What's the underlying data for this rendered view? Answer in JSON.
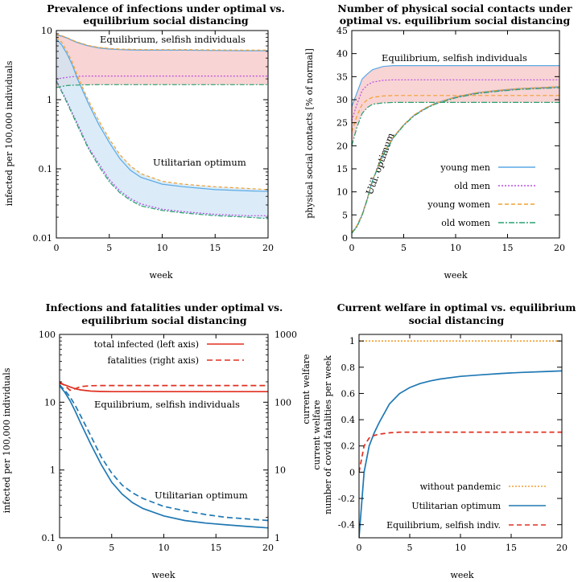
{
  "chart_data": [
    {
      "id": "p1",
      "type": "area",
      "title_lines": [
        "Prevalence of infections under optimal vs.",
        "equilibrium social distancing"
      ],
      "xlabel": "week",
      "ylabel": "infected per 100,000 individuals",
      "xlim": [
        0,
        20
      ],
      "ylim": [
        0.01,
        10
      ],
      "yscale": "log",
      "xticks": [
        "0",
        "5",
        "10",
        "15",
        "20"
      ],
      "yticks": [
        {
          "value": 0.01,
          "label": "0.01"
        },
        {
          "value": 0.1,
          "label": "0.1"
        },
        {
          "value": 1,
          "label": "1"
        },
        {
          "value": 10,
          "label": "10"
        }
      ],
      "annotations": [
        {
          "text": "Equilibrium, selfish individuals",
          "x": 8.5,
          "y": 6.8
        },
        {
          "text": "Utilitarian optimum",
          "x": 9.5,
          "y": 0.13
        }
      ],
      "x": [
        0,
        0.5,
        1,
        1.5,
        2,
        3,
        4,
        5,
        6,
        7,
        8,
        10,
        12,
        15,
        18,
        20
      ],
      "bands": [
        {
          "color": "#f5c6c6",
          "upper": [
            9.0,
            8.6,
            8.0,
            7.4,
            6.9,
            6.2,
            5.8,
            5.6,
            5.45,
            5.4,
            5.35,
            5.3,
            5.3,
            5.25,
            5.2,
            5.2
          ],
          "lower": [
            1.5,
            1.55,
            1.6,
            1.62,
            1.63,
            1.64,
            1.65,
            1.65,
            1.65,
            1.65,
            1.65,
            1.65,
            1.65,
            1.65,
            1.65,
            1.65
          ]
        },
        {
          "color": "#cfe5f5",
          "upper": [
            8.0,
            6.8,
            5.0,
            3.5,
            2.2,
            1.0,
            0.5,
            0.27,
            0.16,
            0.11,
            0.085,
            0.066,
            0.06,
            0.055,
            0.052,
            0.05
          ],
          "lower": [
            1.9,
            1.3,
            0.9,
            0.62,
            0.42,
            0.2,
            0.11,
            0.065,
            0.045,
            0.035,
            0.029,
            0.025,
            0.023,
            0.021,
            0.02,
            0.019
          ]
        }
      ],
      "series": [
        {
          "color": "#5aa9e6",
          "dash": "",
          "values": [
            8.6,
            8.3,
            7.8,
            7.2,
            6.7,
            6.0,
            5.6,
            5.4,
            5.3,
            5.25,
            5.2,
            5.2,
            5.2,
            5.15,
            5.1,
            5.1
          ]
        },
        {
          "color": "#b84fe0",
          "dash": "2,2",
          "values": [
            2.0,
            2.05,
            2.1,
            2.15,
            2.18,
            2.2,
            2.2,
            2.2,
            2.2,
            2.2,
            2.2,
            2.2,
            2.2,
            2.2,
            2.2,
            2.2
          ]
        },
        {
          "color": "#f0a030",
          "dash": "4,3",
          "values": [
            8.8,
            8.4,
            7.9,
            7.3,
            6.8,
            6.1,
            5.7,
            5.5,
            5.4,
            5.35,
            5.3,
            5.3,
            5.3,
            5.25,
            5.2,
            5.2
          ]
        },
        {
          "color": "#2aa070",
          "dash": "6,2,2,2",
          "values": [
            1.5,
            1.55,
            1.6,
            1.62,
            1.63,
            1.64,
            1.65,
            1.65,
            1.65,
            1.65,
            1.65,
            1.65,
            1.65,
            1.65,
            1.65,
            1.65
          ]
        },
        {
          "color": "#5aa9e6",
          "dash": "",
          "values": [
            7.5,
            6.2,
            4.6,
            3.2,
            2.0,
            0.9,
            0.44,
            0.24,
            0.14,
            0.095,
            0.075,
            0.06,
            0.055,
            0.05,
            0.048,
            0.047
          ]
        },
        {
          "color": "#b84fe0",
          "dash": "2,2",
          "values": [
            1.9,
            1.35,
            0.95,
            0.65,
            0.45,
            0.21,
            0.12,
            0.07,
            0.048,
            0.037,
            0.031,
            0.026,
            0.024,
            0.022,
            0.021,
            0.021
          ]
        },
        {
          "color": "#f0a030",
          "dash": "4,3",
          "values": [
            8.0,
            6.8,
            5.0,
            3.5,
            2.2,
            1.0,
            0.5,
            0.27,
            0.16,
            0.11,
            0.085,
            0.066,
            0.06,
            0.055,
            0.052,
            0.05
          ]
        },
        {
          "color": "#2aa070",
          "dash": "6,2,2,2",
          "values": [
            1.85,
            1.3,
            0.9,
            0.62,
            0.42,
            0.2,
            0.11,
            0.065,
            0.045,
            0.035,
            0.029,
            0.025,
            0.023,
            0.021,
            0.02,
            0.019
          ]
        }
      ]
    },
    {
      "id": "p2",
      "type": "line",
      "title_lines": [
        "Number of physical social contacts under",
        "optimal vs. equilibrium social distancing"
      ],
      "xlabel": "week",
      "ylabel": "physical social contacts [% of normal]",
      "xlim": [
        0,
        20
      ],
      "ylim": [
        0,
        45
      ],
      "xticks": [
        "0",
        "5",
        "10",
        "15",
        "20"
      ],
      "yticks": [
        {
          "value": 0,
          "label": "0"
        },
        {
          "value": 5,
          "label": "5"
        },
        {
          "value": 10,
          "label": "10"
        },
        {
          "value": 15,
          "label": "15"
        },
        {
          "value": 20,
          "label": "20"
        },
        {
          "value": 25,
          "label": "25"
        },
        {
          "value": 30,
          "label": "30"
        },
        {
          "value": 35,
          "label": "35"
        },
        {
          "value": 40,
          "label": "40"
        },
        {
          "value": 45,
          "label": "45"
        }
      ],
      "annotations": [
        {
          "text": "Equilibrium, selfish individuals",
          "x": 2.8,
          "y": 37.8
        },
        {
          "text": "Util. optimum",
          "x": 2.1,
          "y": 11.5,
          "rotate": -70
        }
      ],
      "legend": [
        {
          "label": "young men",
          "color": "#5aa9e6",
          "dash": ""
        },
        {
          "label": "old men",
          "color": "#b84fe0",
          "dash": "2,2"
        },
        {
          "label": "young women",
          "color": "#f0a030",
          "dash": "5,3"
        },
        {
          "label": "old women",
          "color": "#2aa070",
          "dash": "7,2,2,2"
        }
      ],
      "x": [
        0,
        0.5,
        1,
        1.5,
        2,
        3,
        4,
        5,
        6,
        7,
        8,
        10,
        12,
        14,
        16,
        18,
        20
      ],
      "band": {
        "color": "#f5c6c6",
        "upper": [
          28.5,
          31.5,
          34.5,
          35.6,
          36.5,
          37.2,
          37.4,
          37.4,
          37.4,
          37.4,
          37.4,
          37.4,
          37.4,
          37.4,
          37.4,
          37.4,
          37.4
        ],
        "lower": [
          20.0,
          24.0,
          27.0,
          28.3,
          29.0,
          29.3,
          29.4,
          29.4,
          29.4,
          29.4,
          29.4,
          29.4,
          29.4,
          29.4,
          29.4,
          29.4,
          29.4
        ]
      },
      "series": [
        {
          "name": "young men",
          "color": "#5aa9e6",
          "dash": "",
          "values": [
            28.5,
            31.5,
            34.5,
            35.6,
            36.5,
            37.2,
            37.4,
            37.4,
            37.4,
            37.4,
            37.4,
            37.4,
            37.4,
            37.4,
            37.4,
            37.4,
            37.4
          ]
        },
        {
          "name": "old men",
          "color": "#b84fe0",
          "dash": "2,2",
          "values": [
            25.5,
            29.0,
            32.0,
            33.2,
            33.8,
            34.2,
            34.3,
            34.3,
            34.3,
            34.3,
            34.3,
            34.3,
            34.3,
            34.3,
            34.3,
            34.3,
            34.3
          ]
        },
        {
          "name": "young women",
          "color": "#f0a030",
          "dash": "5,3",
          "values": [
            23.0,
            26.5,
            29.0,
            30.0,
            30.5,
            30.8,
            30.9,
            30.9,
            30.9,
            30.9,
            30.9,
            30.9,
            30.9,
            30.9,
            30.9,
            30.9,
            30.9
          ]
        },
        {
          "name": "old women",
          "color": "#2aa070",
          "dash": "7,2,2,2",
          "values": [
            20.0,
            24.0,
            27.0,
            28.3,
            29.0,
            29.3,
            29.4,
            29.4,
            29.4,
            29.4,
            29.4,
            29.4,
            29.4,
            29.4,
            29.4,
            29.4,
            29.4
          ]
        },
        {
          "name": "young men",
          "color": "#5aa9e6",
          "dash": "",
          "values": [
            1.0,
            2.5,
            5.0,
            8.5,
            12.5,
            18.0,
            21.8,
            24.5,
            26.6,
            28.0,
            29.2,
            30.6,
            31.5,
            32.0,
            32.4,
            32.6,
            32.8
          ]
        },
        {
          "name": "old men",
          "color": "#b84fe0",
          "dash": "2,2",
          "values": [
            1.1,
            2.6,
            5.1,
            8.6,
            12.5,
            18.0,
            21.8,
            24.5,
            26.6,
            28.0,
            29.1,
            30.5,
            31.4,
            31.9,
            32.3,
            32.5,
            32.7
          ]
        },
        {
          "name": "young women",
          "color": "#f0a030",
          "dash": "5,3",
          "values": [
            1.2,
            2.7,
            5.2,
            8.7,
            12.6,
            18.1,
            21.9,
            24.6,
            26.7,
            28.1,
            29.2,
            30.6,
            31.5,
            32.0,
            32.4,
            32.6,
            32.8
          ]
        },
        {
          "name": "old women",
          "color": "#2aa070",
          "dash": "7,2,2,2",
          "values": [
            1.0,
            2.4,
            4.9,
            8.4,
            12.4,
            17.9,
            21.7,
            24.4,
            26.5,
            27.9,
            29.0,
            30.4,
            31.3,
            31.8,
            32.2,
            32.4,
            32.6
          ]
        }
      ]
    },
    {
      "id": "p3",
      "type": "line",
      "title_lines": [
        "Infections and fatalities under optimal vs.",
        "equilibrium social distancing"
      ],
      "xlabel": "week",
      "ylabel": "infected per 100,000 individuals",
      "ylabel_right": "current welfare",
      "xlim": [
        0,
        20
      ],
      "ylim": [
        0.1,
        100
      ],
      "yscale": "log",
      "ylim_right": [
        1,
        1000
      ],
      "xticks": [
        "0",
        "5",
        "10",
        "15",
        "20"
      ],
      "yticks": [
        {
          "value": 0.1,
          "label": "0.1"
        },
        {
          "value": 1,
          "label": "1"
        },
        {
          "value": 10,
          "label": "10"
        },
        {
          "value": 100,
          "label": "100"
        }
      ],
      "yticks_right": [
        {
          "value": 1,
          "label": "1"
        },
        {
          "value": 10,
          "label": "10"
        },
        {
          "value": 100,
          "label": "100"
        },
        {
          "value": 1000,
          "label": "1000"
        }
      ],
      "annotations": [
        {
          "text": "Equilibrium, selfish individuals",
          "x": 3.3,
          "y": 10.2
        },
        {
          "text": "Utilitarian optimum",
          "x": 9.0,
          "y": 0.42
        }
      ],
      "legend": [
        {
          "label": "total infected (left axis)",
          "color": "#e03020",
          "dash": ""
        },
        {
          "label": "fatalities (right axis)",
          "color": "#e03020",
          "dash": "7,4"
        }
      ],
      "x": [
        0,
        0.5,
        1,
        1.5,
        2,
        3,
        4,
        5,
        6,
        7,
        8,
        10,
        12,
        14,
        16,
        18,
        20
      ],
      "series": [
        {
          "name": "total infected (left axis)",
          "axis": "left",
          "color": "#e03020",
          "dash": "",
          "values": [
            19.0,
            18.0,
            16.8,
            15.8,
            15.2,
            14.6,
            14.4,
            14.3,
            14.3,
            14.3,
            14.3,
            14.3,
            14.3,
            14.3,
            14.3,
            14.3,
            14.3
          ]
        },
        {
          "name": "fatalities (right axis)",
          "axis": "right",
          "color": "#e03020",
          "dash": "7,4",
          "values": [
            200,
            175,
            150,
            158,
            170,
            175,
            176,
            176,
            176,
            176,
            176,
            176,
            176,
            176,
            176,
            176,
            176
          ]
        },
        {
          "name": "total infected (left axis)",
          "axis": "left",
          "color": "#1f78b4",
          "dash": "",
          "values": [
            17.5,
            14.0,
            10.5,
            7.4,
            5.0,
            2.4,
            1.2,
            0.66,
            0.44,
            0.33,
            0.27,
            0.21,
            0.18,
            0.165,
            0.155,
            0.147,
            0.14
          ]
        },
        {
          "name": "fatalities (right axis)",
          "axis": "right",
          "color": "#1f78b4",
          "dash": "7,4",
          "values": [
            180,
            150,
            120,
            90,
            64,
            32,
            15.5,
            9.0,
            6.0,
            4.6,
            3.8,
            2.9,
            2.5,
            2.2,
            2.0,
            1.9,
            1.8
          ]
        }
      ]
    },
    {
      "id": "p4",
      "type": "line",
      "title_lines": [
        "Current welfare in optimal vs. equilibrium",
        "social distancing"
      ],
      "xlabel": "week",
      "ylabel_lines": [
        "current welfare",
        "number of covid fatalities per week"
      ],
      "xlim": [
        0,
        20
      ],
      "ylim": [
        -0.5,
        1.05
      ],
      "xticks": [
        "0",
        "5",
        "10",
        "15",
        "20"
      ],
      "yticks": [
        {
          "value": -0.4,
          "label": "-0.4"
        },
        {
          "value": -0.2,
          "label": "-0.2"
        },
        {
          "value": 0,
          "label": "0"
        },
        {
          "value": 0.2,
          "label": "0.2"
        },
        {
          "value": 0.4,
          "label": "0.4"
        },
        {
          "value": 0.6,
          "label": "0.6"
        },
        {
          "value": 0.8,
          "label": "0.8"
        },
        {
          "value": 1,
          "label": "1"
        }
      ],
      "legend": [
        {
          "label": "without pandemic",
          "color": "#f0a030",
          "dash": "2,2"
        },
        {
          "label": "Utilitarian optimum",
          "color": "#1f78b4",
          "dash": ""
        },
        {
          "label": "Equilibrium, selfish indiv.",
          "color": "#e03020",
          "dash": "6,4"
        }
      ],
      "x": [
        0,
        0.5,
        1,
        1.5,
        2,
        3,
        4,
        5,
        6,
        7,
        8,
        10,
        12,
        14,
        16,
        18,
        20
      ],
      "series": [
        {
          "name": "without pandemic",
          "color": "#f0a030",
          "dash": "2,2",
          "values": [
            1,
            1,
            1,
            1,
            1,
            1,
            1,
            1,
            1,
            1,
            1,
            1,
            1,
            1,
            1,
            1,
            1
          ]
        },
        {
          "name": "Utilitarian optimum",
          "color": "#1f78b4",
          "dash": "",
          "values": [
            -0.5,
            0.0,
            0.2,
            0.3,
            0.38,
            0.52,
            0.6,
            0.645,
            0.675,
            0.695,
            0.71,
            0.73,
            0.742,
            0.752,
            0.76,
            0.766,
            0.772
          ]
        },
        {
          "name": "Equilibrium, selfish indiv.",
          "color": "#e03020",
          "dash": "6,4",
          "values": [
            0.0,
            0.2,
            0.26,
            0.28,
            0.29,
            0.3,
            0.305,
            0.305,
            0.305,
            0.305,
            0.305,
            0.305,
            0.305,
            0.305,
            0.305,
            0.305,
            0.305
          ]
        }
      ]
    }
  ]
}
